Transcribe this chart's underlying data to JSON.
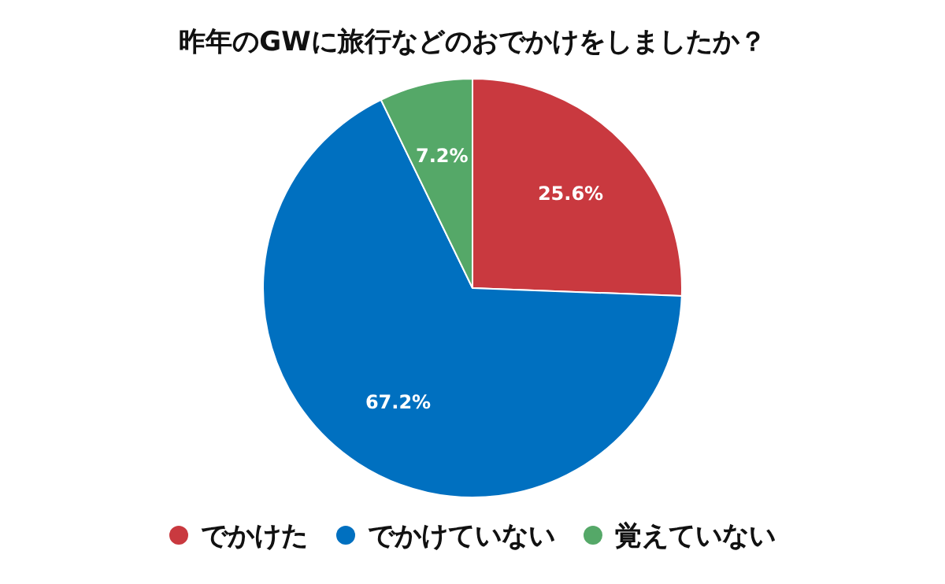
{
  "chart_data": {
    "type": "pie",
    "title": "昨年のGWに旅行などのおでかけをしましたか？",
    "categories": [
      "でかけた",
      "でかけていない",
      "覚えていない"
    ],
    "values": [
      25.6,
      67.2,
      7.2
    ],
    "value_labels": [
      "25.6%",
      "67.2%",
      "7.2%"
    ],
    "colors": [
      "#c9393f",
      "#0070c0",
      "#55a868"
    ],
    "legend": "bottom"
  }
}
